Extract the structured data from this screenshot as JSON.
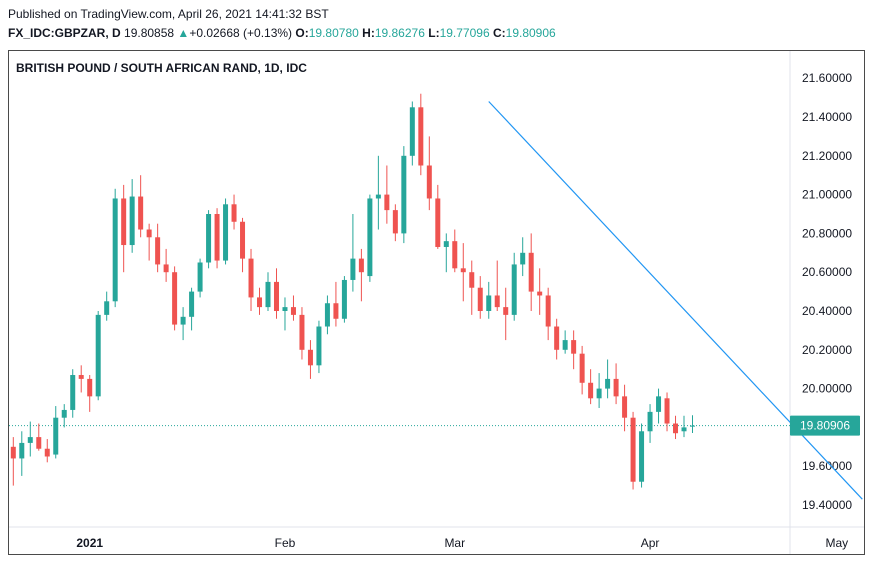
{
  "header": {
    "published": "Published on TradingView.com, April 26, 2021 14:41:32 BST",
    "symbol": "FX_IDC:GBPZAR, D",
    "price": "19.80858",
    "change_arrow": "▲",
    "change": "+0.02668 (+0.13%)",
    "o_label": "O:",
    "o_value": "19.80780",
    "h_label": "H:",
    "h_value": "19.86276",
    "l_label": "L:",
    "l_value": "19.77096",
    "c_label": "C:",
    "c_value": "19.80906"
  },
  "chart_data": {
    "type": "candlestick",
    "title": "BRITISH POUND / SOUTH AFRICAN RAND, 1D, IDC",
    "ylim": [
      19.3,
      21.65
    ],
    "y_ticks": [
      "19.40000",
      "19.60000",
      "19.80000",
      "20.00000",
      "20.20000",
      "20.40000",
      "20.60000",
      "20.80000",
      "21.00000",
      "21.20000",
      "21.40000",
      "21.60000"
    ],
    "x_ticks": [
      {
        "label": "2021",
        "index": 9,
        "bold": true
      },
      {
        "label": "Feb",
        "index": 32,
        "bold": false
      },
      {
        "label": "Mar",
        "index": 52,
        "bold": false
      },
      {
        "label": "Apr",
        "index": 75,
        "bold": false
      },
      {
        "label": "May",
        "index": 97,
        "bold": false
      }
    ],
    "last_price": 19.80906,
    "last_price_label": "19.80906",
    "colors": {
      "up": "#26a69a",
      "down": "#ef5350",
      "trendline": "#2196f3",
      "price_line": "#26a69a"
    },
    "trendline": {
      "from": [
        56,
        21.48
      ],
      "to": [
        100,
        19.43
      ]
    },
    "candles": [
      [
        19.7,
        19.75,
        19.5,
        19.64
      ],
      [
        19.64,
        19.78,
        19.55,
        19.72
      ],
      [
        19.72,
        19.83,
        19.65,
        19.75
      ],
      [
        19.75,
        19.82,
        19.68,
        19.69
      ],
      [
        19.69,
        19.74,
        19.62,
        19.65
      ],
      [
        19.66,
        19.91,
        19.64,
        19.85
      ],
      [
        19.85,
        19.92,
        19.8,
        19.89
      ],
      [
        19.89,
        20.1,
        19.85,
        20.07
      ],
      [
        20.07,
        20.12,
        19.98,
        20.05
      ],
      [
        20.05,
        20.07,
        19.88,
        19.96
      ],
      [
        19.96,
        20.4,
        19.94,
        20.38
      ],
      [
        20.38,
        20.5,
        20.35,
        20.45
      ],
      [
        20.45,
        21.03,
        20.42,
        20.98
      ],
      [
        20.98,
        21.05,
        20.6,
        20.74
      ],
      [
        20.74,
        21.08,
        20.7,
        20.99
      ],
      [
        20.99,
        21.1,
        20.78,
        20.82
      ],
      [
        20.82,
        20.85,
        20.66,
        20.78
      ],
      [
        20.78,
        20.85,
        20.6,
        20.64
      ],
      [
        20.64,
        20.72,
        20.55,
        20.6
      ],
      [
        20.6,
        20.63,
        20.3,
        20.33
      ],
      [
        20.33,
        20.42,
        20.25,
        20.37
      ],
      [
        20.37,
        20.52,
        20.3,
        20.5
      ],
      [
        20.5,
        20.67,
        20.47,
        20.65
      ],
      [
        20.65,
        20.92,
        20.62,
        20.9
      ],
      [
        20.9,
        20.93,
        20.62,
        20.66
      ],
      [
        20.66,
        20.98,
        20.64,
        20.95
      ],
      [
        20.95,
        21.0,
        20.82,
        20.86
      ],
      [
        20.86,
        20.88,
        20.6,
        20.67
      ],
      [
        20.67,
        20.72,
        20.4,
        20.47
      ],
      [
        20.47,
        20.52,
        20.38,
        20.42
      ],
      [
        20.42,
        20.6,
        20.4,
        20.55
      ],
      [
        20.55,
        20.62,
        20.36,
        20.4
      ],
      [
        20.4,
        20.47,
        20.3,
        20.42
      ],
      [
        20.42,
        20.48,
        20.35,
        20.38
      ],
      [
        20.38,
        20.42,
        20.15,
        20.2
      ],
      [
        20.2,
        20.25,
        20.05,
        20.12
      ],
      [
        20.12,
        20.35,
        20.08,
        20.32
      ],
      [
        20.32,
        20.48,
        20.28,
        20.44
      ],
      [
        20.44,
        20.55,
        20.32,
        20.36
      ],
      [
        20.36,
        20.58,
        20.34,
        20.56
      ],
      [
        20.56,
        20.9,
        20.5,
        20.67
      ],
      [
        20.67,
        20.72,
        20.45,
        20.6
      ],
      [
        20.58,
        21.0,
        20.55,
        20.98
      ],
      [
        20.98,
        21.2,
        20.82,
        21.0
      ],
      [
        21.0,
        21.15,
        20.85,
        20.92
      ],
      [
        20.92,
        20.95,
        20.76,
        20.8
      ],
      [
        20.8,
        21.25,
        20.75,
        21.2
      ],
      [
        21.2,
        21.48,
        21.15,
        21.45
      ],
      [
        21.45,
        21.52,
        21.1,
        21.15
      ],
      [
        21.15,
        21.3,
        20.92,
        20.98
      ],
      [
        20.98,
        21.05,
        20.72,
        20.73
      ],
      [
        20.73,
        20.8,
        20.6,
        20.76
      ],
      [
        20.76,
        20.82,
        20.6,
        20.62
      ],
      [
        20.62,
        20.75,
        20.45,
        20.6
      ],
      [
        20.6,
        20.66,
        20.38,
        20.52
      ],
      [
        20.52,
        20.58,
        20.36,
        20.4
      ],
      [
        20.4,
        20.55,
        20.36,
        20.48
      ],
      [
        20.48,
        20.66,
        20.4,
        20.42
      ],
      [
        20.42,
        20.52,
        20.25,
        20.38
      ],
      [
        20.38,
        20.7,
        20.35,
        20.64
      ],
      [
        20.64,
        20.78,
        20.58,
        20.7
      ],
      [
        20.7,
        20.8,
        20.4,
        20.5
      ],
      [
        20.5,
        20.62,
        20.38,
        20.48
      ],
      [
        20.48,
        20.52,
        20.25,
        20.32
      ],
      [
        20.32,
        20.36,
        20.15,
        20.2
      ],
      [
        20.2,
        20.3,
        20.18,
        20.25
      ],
      [
        20.25,
        20.3,
        20.1,
        20.18
      ],
      [
        20.18,
        20.22,
        19.97,
        20.03
      ],
      [
        20.03,
        20.1,
        19.92,
        19.95
      ],
      [
        19.95,
        20.08,
        19.9,
        20.0
      ],
      [
        20.0,
        20.15,
        19.95,
        20.05
      ],
      [
        20.05,
        20.13,
        19.92,
        19.96
      ],
      [
        19.96,
        20.02,
        19.78,
        19.85
      ],
      [
        19.85,
        19.88,
        19.48,
        19.52
      ],
      [
        19.52,
        19.82,
        19.49,
        19.78
      ],
      [
        19.78,
        19.92,
        19.72,
        19.88
      ],
      [
        19.88,
        20.0,
        19.82,
        19.96
      ],
      [
        19.95,
        19.98,
        19.78,
        19.82
      ],
      [
        19.82,
        19.86,
        19.74,
        19.77
      ],
      [
        19.78,
        19.86,
        19.75,
        19.8
      ],
      [
        19.8078,
        19.86276,
        19.77096,
        19.80906
      ]
    ]
  }
}
